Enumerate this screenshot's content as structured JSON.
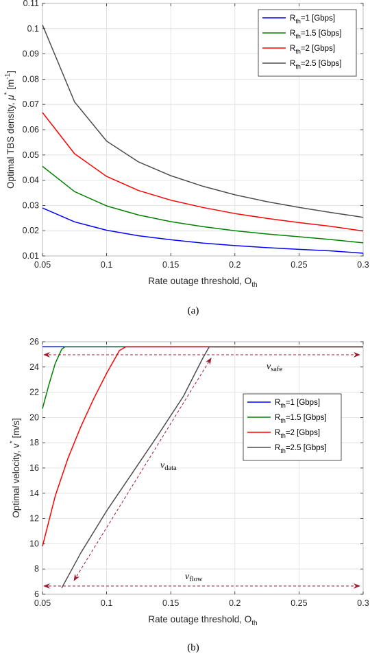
{
  "charts": [
    {
      "id": "a",
      "caption": "(a)",
      "ylabel_main": "Optimal TBS density, ",
      "ylabel_sym": "μ",
      "ylabel_sup": "*",
      "ylabel_unit": "[m",
      "ylabel_unit_sup": "-1",
      "ylabel_unit_end": "]",
      "xlabel_main": "Rate outage threshold, O",
      "xlabel_sub": "th",
      "legend": [
        {
          "main": "R",
          "sub": "th",
          "rest": "=1 [Gbps]",
          "color": "#0000ff"
        },
        {
          "main": "R",
          "sub": "th",
          "rest": "=1.5 [Gbps]",
          "color": "#008000"
        },
        {
          "main": "R",
          "sub": "th",
          "rest": "=2 [Gbps]",
          "color": "#ff0000"
        },
        {
          "main": "R",
          "sub": "th",
          "rest": "=2.5 [Gbps]",
          "color": "#4d4d4d"
        }
      ]
    },
    {
      "id": "b",
      "caption": "(b)",
      "ylabel_main": "Optimal velocity, v",
      "ylabel_sup": "*",
      "ylabel_unit": " [m/s]",
      "xlabel_main": "Rate outage threshold, O",
      "xlabel_sub": "th",
      "legend": [
        {
          "main": "R",
          "sub": "th",
          "rest": "=1 [Gbps]",
          "color": "#0000ff"
        },
        {
          "main": "R",
          "sub": "th",
          "rest": "=1.5 [Gbps]",
          "color": "#008000"
        },
        {
          "main": "R",
          "sub": "th",
          "rest": "=2 [Gbps]",
          "color": "#ff0000"
        },
        {
          "main": "R",
          "sub": "th",
          "rest": "=2.5 [Gbps]",
          "color": "#4d4d4d"
        }
      ],
      "annotations": [
        {
          "main": "v",
          "sub": "safe"
        },
        {
          "main": "v",
          "sub": "data"
        },
        {
          "main": "v",
          "sub": "flow"
        }
      ],
      "arrow_color": "#9b1b30"
    }
  ],
  "chart_data": [
    {
      "type": "line",
      "xlim": [
        0.05,
        0.3
      ],
      "ylim": [
        0.01,
        0.11
      ],
      "xticks": [
        "0.05",
        "0.1",
        "0.15",
        "0.2",
        "0.25",
        "0.3"
      ],
      "yticks": [
        "0.01",
        "0.02",
        "0.03",
        "0.04",
        "0.05",
        "0.06",
        "0.07",
        "0.08",
        "0.09",
        "0.1",
        "0.11"
      ],
      "grid": true,
      "legend_position": "top-right",
      "series": [
        {
          "name": "Rth=1 [Gbps]",
          "color": "#0000ff",
          "x": [
            0.05,
            0.075,
            0.1,
            0.125,
            0.15,
            0.175,
            0.2,
            0.225,
            0.25,
            0.275,
            0.3
          ],
          "y": [
            0.029,
            0.0235,
            0.0202,
            0.018,
            0.0164,
            0.0151,
            0.0141,
            0.0133,
            0.0126,
            0.012,
            0.0111
          ]
        },
        {
          "name": "Rth=1.5 [Gbps]",
          "color": "#008000",
          "x": [
            0.05,
            0.075,
            0.1,
            0.125,
            0.15,
            0.175,
            0.2,
            0.225,
            0.25,
            0.275,
            0.3
          ],
          "y": [
            0.0455,
            0.0355,
            0.0298,
            0.0262,
            0.0236,
            0.0216,
            0.02,
            0.0187,
            0.0176,
            0.0165,
            0.0152
          ]
        },
        {
          "name": "Rth=2 [Gbps]",
          "color": "#ff0000",
          "x": [
            0.05,
            0.075,
            0.1,
            0.125,
            0.15,
            0.175,
            0.2,
            0.225,
            0.25,
            0.275,
            0.3
          ],
          "y": [
            0.0668,
            0.0505,
            0.0415,
            0.0359,
            0.0321,
            0.0292,
            0.0268,
            0.0249,
            0.0232,
            0.0217,
            0.0199
          ]
        },
        {
          "name": "Rth=2.5 [Gbps]",
          "color": "#4d4d4d",
          "x": [
            0.05,
            0.075,
            0.1,
            0.125,
            0.15,
            0.175,
            0.2,
            0.225,
            0.25,
            0.275,
            0.3
          ],
          "y": [
            0.1015,
            0.071,
            0.0555,
            0.0472,
            0.0418,
            0.0376,
            0.0342,
            0.0315,
            0.0292,
            0.0272,
            0.0253
          ]
        }
      ]
    },
    {
      "type": "line",
      "xlim": [
        0.05,
        0.3
      ],
      "ylim": [
        6,
        26
      ],
      "xticks": [
        "0.05",
        "0.1",
        "0.15",
        "0.2",
        "0.25",
        "0.3"
      ],
      "yticks": [
        "6",
        "8",
        "10",
        "12",
        "14",
        "16",
        "18",
        "20",
        "22",
        "24",
        "26"
      ],
      "grid": true,
      "legend_position": "center-right",
      "series": [
        {
          "name": "Rth=1 [Gbps]",
          "color": "#0000ff",
          "x": [
            0.05,
            0.3
          ],
          "y": [
            25.6,
            25.6
          ]
        },
        {
          "name": "Rth=1.5 [Gbps]",
          "color": "#008000",
          "x": [
            0.05,
            0.055,
            0.06,
            0.065,
            0.0675,
            0.3
          ],
          "y": [
            20.7,
            22.6,
            24.3,
            25.4,
            25.6,
            25.6
          ]
        },
        {
          "name": "Rth=2 [Gbps]",
          "color": "#ff0000",
          "x": [
            0.05,
            0.06,
            0.07,
            0.08,
            0.09,
            0.1,
            0.11,
            0.115,
            0.3
          ],
          "y": [
            9.8,
            13.8,
            16.8,
            19.3,
            21.5,
            23.5,
            25.3,
            25.6,
            25.6
          ]
        },
        {
          "name": "Rth=2.5 [Gbps]",
          "color": "#4d4d4d",
          "x": [
            0.065,
            0.08,
            0.1,
            0.12,
            0.14,
            0.16,
            0.175,
            0.18,
            0.3
          ],
          "y": [
            6.5,
            9.3,
            12.6,
            15.6,
            18.6,
            21.7,
            24.7,
            25.6,
            25.6
          ]
        }
      ]
    }
  ]
}
